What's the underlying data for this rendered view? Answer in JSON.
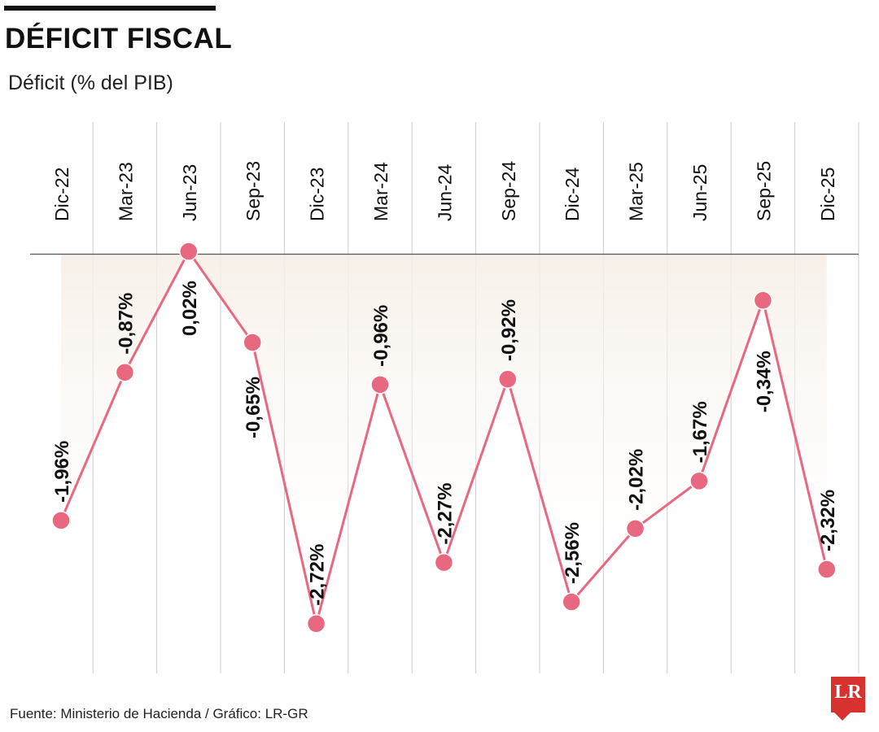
{
  "header": {
    "title": "DÉFICIT FISCAL",
    "subtitle": "Déficit (% del PIB)"
  },
  "footer": {
    "source": "Fuente: Ministerio de Hacienda / Gráfico: LR-GR",
    "logo_text": "LR"
  },
  "colors": {
    "line": "#e8697f",
    "marker": "#e8697f",
    "grid": "#cccccc",
    "axis": "#555555",
    "fill_top": "#f6eee6",
    "logo": "#d8322f"
  },
  "chart_data": {
    "type": "line",
    "title": "DÉFICIT FISCAL",
    "ylabel": "Déficit (% del PIB)",
    "categories": [
      "Dic-22",
      "Mar-23",
      "Jun-23",
      "Sep-23",
      "Dic-23",
      "Mar-24",
      "Jun-24",
      "Sep-24",
      "Dic-24",
      "Mar-25",
      "Jun-25",
      "Sep-25",
      "Dic-25"
    ],
    "values": [
      -1.96,
      -0.87,
      0.02,
      -0.65,
      -2.72,
      -0.96,
      -2.27,
      -0.92,
      -2.56,
      -2.02,
      -1.67,
      -0.34,
      -2.32
    ],
    "labels": [
      "-1,96%",
      "-0,87%",
      "0,02%",
      "-0,65%",
      "-2,72%",
      "-0,96%",
      "-2,27%",
      "-0,92%",
      "-2,56%",
      "-2,02%",
      "-1,67%",
      "-0,34%",
      "-2,32%"
    ],
    "ylim": [
      -2.9,
      0.15
    ],
    "grid": true,
    "legend": "none"
  }
}
